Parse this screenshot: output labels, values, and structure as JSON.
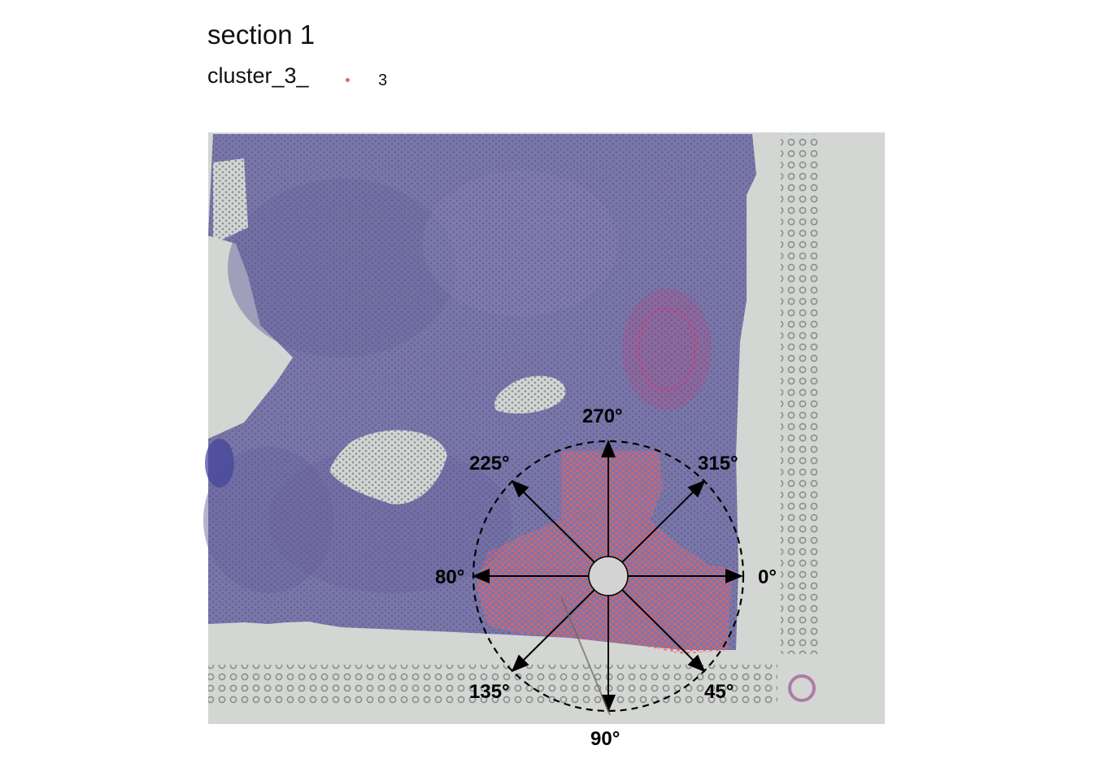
{
  "title": "section 1",
  "legend": {
    "label": "cluster_3_",
    "value": "3",
    "dot_color": "#f0605a"
  },
  "image": {
    "tissue_color": "#7a76ad",
    "background_color": "#d3d6d3",
    "highlight_color": "#f0605a"
  },
  "compass": {
    "angles": [
      "0°",
      "45°",
      "90°",
      "135°",
      "80°",
      "225°",
      "270°",
      "315°"
    ]
  }
}
